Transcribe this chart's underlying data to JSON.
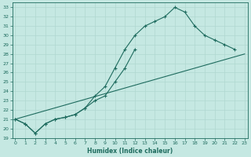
{
  "bg_color": "#c5e8e2",
  "line_color": "#1e6b5e",
  "grid_color": "#b0d8d0",
  "xlabel": "Humidex (Indice chaleur)",
  "series": [
    {
      "x": [
        0,
        1,
        2,
        3,
        4,
        5,
        6,
        7,
        8,
        9,
        10,
        11,
        12,
        13,
        14,
        15,
        16,
        17,
        18,
        19,
        20,
        21,
        22
      ],
      "y": [
        21,
        20.5,
        19.5,
        20.5,
        21,
        21.2,
        21.5,
        22.2,
        23.5,
        24.5,
        26.5,
        28.5,
        30.0,
        31.0,
        31.5,
        32.0,
        33.0,
        32.5,
        31.0,
        30.0,
        29.5,
        29.0,
        28.5
      ]
    },
    {
      "x": [
        0,
        1,
        2,
        3,
        4,
        5,
        6,
        7,
        8,
        9,
        10,
        11,
        12
      ],
      "y": [
        21,
        20.5,
        19.5,
        20.5,
        21,
        21.2,
        21.5,
        22.2,
        23.0,
        23.5,
        25.0,
        26.5,
        28.5
      ]
    },
    {
      "x": [
        0,
        23
      ],
      "y": [
        21,
        28.0
      ]
    }
  ],
  "xlim": [
    -0.3,
    23.3
  ],
  "ylim": [
    19,
    33.5
  ],
  "yticks": [
    19,
    20,
    21,
    22,
    23,
    24,
    25,
    26,
    27,
    28,
    29,
    30,
    31,
    32,
    33
  ],
  "xticks": [
    0,
    1,
    2,
    3,
    4,
    5,
    6,
    7,
    8,
    9,
    10,
    11,
    12,
    13,
    14,
    15,
    16,
    17,
    18,
    19,
    20,
    21,
    22,
    23
  ]
}
